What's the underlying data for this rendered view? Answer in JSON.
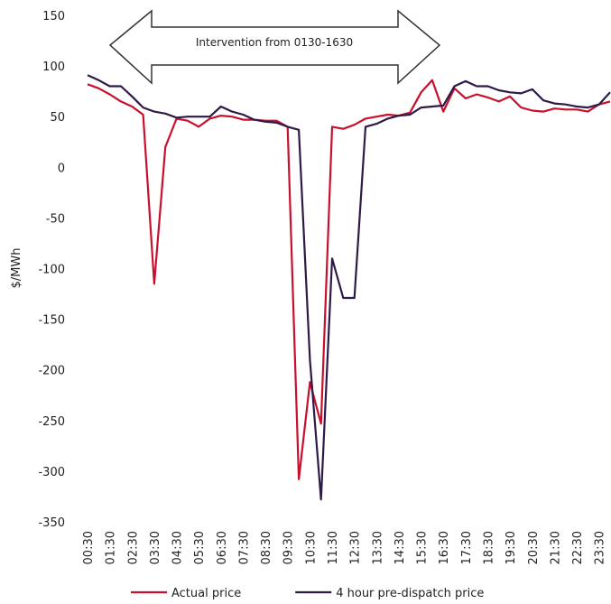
{
  "chart_data": {
    "type": "line",
    "y_label": "$/MWh",
    "annotation": "Intervention from 0130-1630",
    "categories": [
      "00:30",
      null,
      "01:30",
      null,
      "02:30",
      null,
      "03:30",
      null,
      "04:30",
      null,
      "05:30",
      null,
      "06:30",
      null,
      "07:30",
      null,
      "08:30",
      null,
      "09:30",
      null,
      "10:30",
      null,
      "11:30",
      null,
      "12:30",
      null,
      "13:30",
      null,
      "14:30",
      null,
      "15:30",
      null,
      "16:30",
      null,
      "17:30",
      null,
      "18:30",
      null,
      "19:30",
      null,
      "20:30",
      null,
      "21:30",
      null,
      "22:30",
      null,
      "23:30",
      null
    ],
    "series": [
      {
        "name": "Actual price",
        "color": "#c8102e",
        "values": [
          82,
          78,
          72,
          65,
          60,
          52,
          -115,
          20,
          48,
          46,
          40,
          48,
          51,
          50,
          47,
          47,
          46,
          46,
          40,
          -308,
          -212,
          -253,
          40,
          38,
          42,
          48,
          50,
          52,
          51,
          54,
          74,
          86,
          55,
          78,
          68,
          72,
          69,
          65,
          70,
          59,
          56,
          55,
          58,
          57,
          57,
          55,
          62,
          65
        ]
      },
      {
        "name": "4 hour pre-dispatch price",
        "color": "#2d1a47",
        "values": [
          91,
          86,
          80,
          80,
          70,
          59,
          55,
          53,
          49,
          50,
          50,
          50,
          60,
          55,
          52,
          47,
          45,
          44,
          40,
          37,
          -190,
          -328,
          -90,
          -129,
          -129,
          40,
          43,
          48,
          51,
          52,
          59,
          60,
          61,
          80,
          85,
          80,
          80,
          76,
          74,
          73,
          77,
          66,
          63,
          62,
          60,
          59,
          62,
          74
        ]
      }
    ],
    "ylim": [
      -350,
      150
    ],
    "yticks": [
      -350,
      -300,
      -250,
      -200,
      -150,
      -100,
      -50,
      0,
      50,
      100,
      150
    ],
    "grid": false,
    "legend": "bottom"
  }
}
